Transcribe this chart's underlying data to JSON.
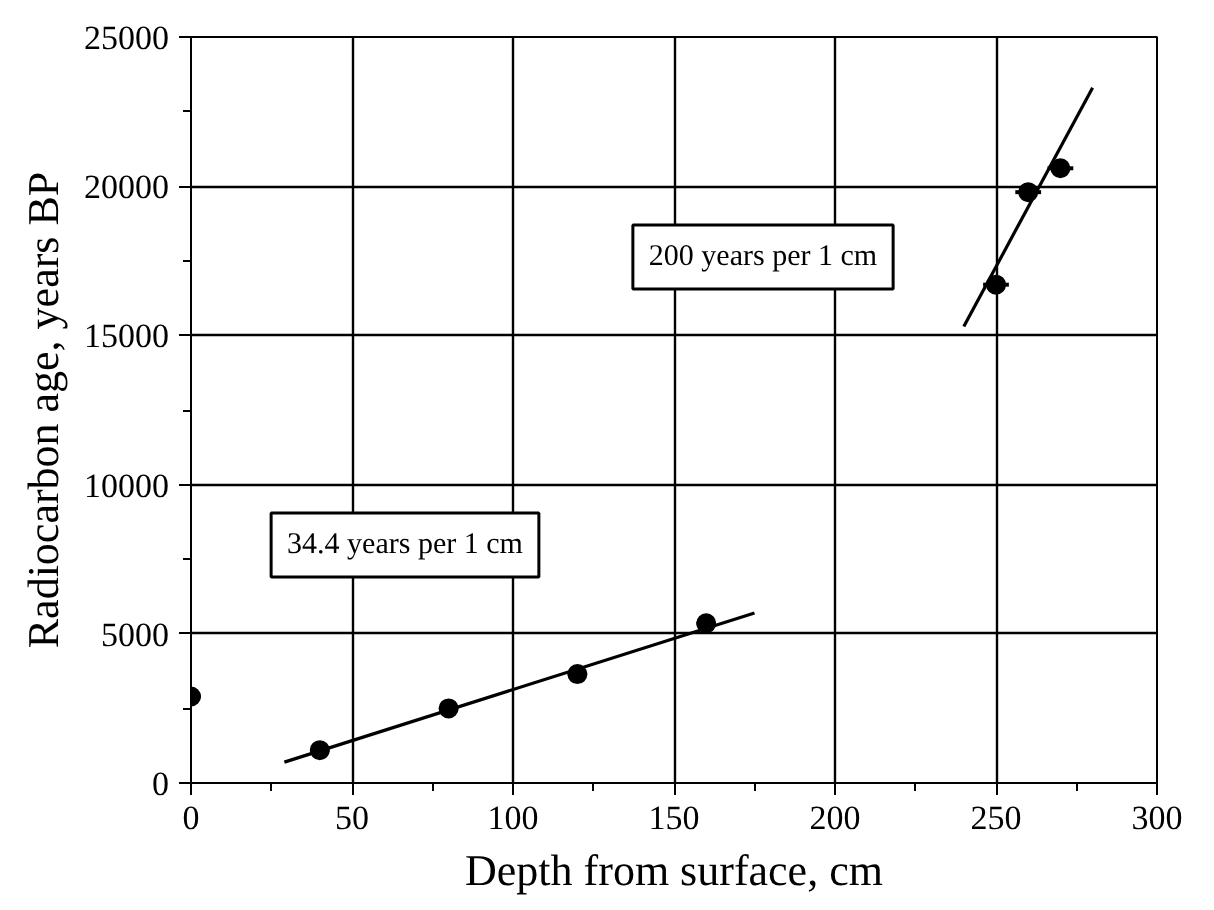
{
  "chart_data": {
    "type": "scatter",
    "xlabel": "Depth from surface, cm",
    "ylabel": "Radiocarbon age, years BP",
    "xlim": [
      0,
      300
    ],
    "ylim": [
      0,
      25000
    ],
    "xticks": [
      0,
      50,
      100,
      150,
      200,
      250,
      300
    ],
    "yticks": [
      0,
      5000,
      10000,
      15000,
      20000,
      25000
    ],
    "grid": true,
    "series": [
      {
        "marker": "circle",
        "color": "#000000",
        "x": [
          0,
          40,
          80,
          120,
          160,
          250,
          260,
          270
        ],
        "values": [
          2900,
          1100,
          2500,
          3650,
          5350,
          16700,
          19800,
          20600
        ],
        "xerrors": [
          3,
          3,
          3,
          3,
          3,
          4,
          4,
          4
        ]
      },
      {
        "type": "line",
        "color": "#000000",
        "x": [
          29,
          175
        ],
        "values": [
          700,
          5700
        ]
      },
      {
        "type": "line",
        "color": "#000000",
        "x": [
          240,
          280
        ],
        "values": [
          15300,
          23300
        ]
      }
    ],
    "annotations": [
      "34.4 years per 1 cm",
      "200 years per 1 cm"
    ]
  }
}
